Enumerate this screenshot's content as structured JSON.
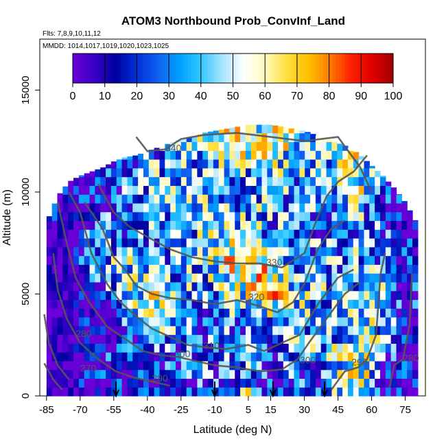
{
  "figure": {
    "title": "ATOM3 Northbound Prob_ConvInf_Land",
    "flights_label": "Flts: 7,8,9,10,11,12",
    "dates_label": "MMDD: 1014,1017,1019,1020,1023,1025"
  },
  "chart_data": {
    "type": "heatmap",
    "title": "ATOM3 Northbound Prob_ConvInf_Land",
    "xlabel": "Latitude (deg N)",
    "ylabel": "Altitude (m)",
    "xlim": [
      -88,
      84
    ],
    "ylim": [
      0,
      17500
    ],
    "x_ticks": [
      -85,
      -70,
      -55,
      -40,
      -25,
      -10,
      5,
      15,
      30,
      45,
      60,
      75
    ],
    "y_ticks": [
      0,
      5000,
      10000,
      15000
    ],
    "x_tick_labels": [
      "-85",
      "-70",
      "-55",
      "-40",
      "-25",
      "-10",
      "5",
      "15",
      "30",
      "45",
      "60",
      "75"
    ],
    "y_tick_labels": [
      "0",
      "5000",
      "10000",
      "15000"
    ],
    "colorbar": {
      "min": 0,
      "max": 100,
      "ticks": [
        0,
        10,
        20,
        30,
        40,
        50,
        60,
        70,
        80,
        90,
        100
      ],
      "tick_labels": [
        "0",
        "10",
        "20",
        "30",
        "40",
        "50",
        "60",
        "70",
        "80",
        "90",
        "100"
      ],
      "colors": [
        "#6a00d8",
        "#3a00c8",
        "#0000a0",
        "#0030d8",
        "#1060f0",
        "#00a0ff",
        "#30c8ff",
        "#a8e4ff",
        "#ffffff",
        "#fffac0",
        "#ffe040",
        "#ffc000",
        "#ff8000",
        "#ff2000",
        "#e00000",
        "#a00000"
      ]
    },
    "coverage": {
      "lat": [
        -85,
        -80,
        -75,
        -70,
        -65,
        -60,
        -55,
        -50,
        -45,
        -40,
        -35,
        -30,
        -25,
        -20,
        -15,
        -10,
        -5,
        0,
        5,
        10,
        15,
        20,
        25,
        30,
        35,
        40,
        45,
        50,
        55,
        60,
        65,
        70,
        75,
        80
      ],
      "max_alt": [
        8500,
        9800,
        10500,
        10800,
        11000,
        11200,
        11500,
        11700,
        11800,
        12000,
        12200,
        12400,
        12600,
        12700,
        12900,
        13000,
        13100,
        13200,
        13300,
        13300,
        13300,
        13200,
        13100,
        13000,
        12800,
        12600,
        12400,
        12200,
        11800,
        11300,
        10800,
        10200,
        9500,
        8500
      ]
    },
    "field": {
      "lat": [
        -85,
        -75,
        -65,
        -55,
        -45,
        -35,
        -25,
        -15,
        -5,
        5,
        15,
        25,
        35,
        45,
        55,
        65,
        75
      ],
      "alt": [
        500,
        2000,
        3500,
        5000,
        6500,
        8000,
        9500,
        11000,
        12500
      ],
      "prob": [
        [
          1,
          2,
          5,
          12,
          10,
          8,
          15,
          30,
          20,
          45,
          12,
          22,
          18,
          50,
          60,
          15,
          5
        ],
        [
          1,
          3,
          6,
          18,
          15,
          20,
          25,
          30,
          30,
          30,
          20,
          40,
          35,
          45,
          55,
          30,
          10
        ],
        [
          2,
          5,
          10,
          25,
          30,
          40,
          45,
          25,
          35,
          30,
          30,
          35,
          40,
          35,
          45,
          40,
          15
        ],
        [
          3,
          8,
          20,
          35,
          50,
          55,
          40,
          35,
          40,
          50,
          70,
          45,
          40,
          35,
          45,
          40,
          15
        ],
        [
          3,
          10,
          25,
          40,
          45,
          40,
          30,
          40,
          60,
          75,
          60,
          40,
          35,
          35,
          40,
          30,
          12
        ],
        [
          2,
          10,
          25,
          30,
          30,
          30,
          35,
          40,
          50,
          40,
          35,
          35,
          30,
          30,
          35,
          25,
          10
        ],
        [
          2,
          8,
          15,
          25,
          30,
          35,
          35,
          40,
          40,
          40,
          35,
          35,
          30,
          35,
          45,
          20,
          8
        ],
        [
          0,
          3,
          10,
          20,
          30,
          40,
          35,
          35,
          35,
          40,
          45,
          40,
          35,
          45,
          55,
          20,
          5
        ],
        [
          0,
          0,
          5,
          10,
          20,
          30,
          40,
          50,
          55,
          60,
          55,
          50,
          45,
          50,
          60,
          30,
          0
        ]
      ]
    },
    "contour_labels": [
      {
        "text": "340",
        "lat": -32,
        "alt": 12000
      },
      {
        "text": "330",
        "lat": 13,
        "alt": 6400
      },
      {
        "text": "320",
        "lat": 5,
        "alt": 4700
      },
      {
        "text": "310",
        "lat": -15,
        "alt": 2300
      },
      {
        "text": "300",
        "lat": -28,
        "alt": 1900
      },
      {
        "text": "300",
        "lat": 28,
        "alt": 1600
      },
      {
        "text": "290",
        "lat": 51,
        "alt": 1500
      },
      {
        "text": "290",
        "lat": -38,
        "alt": 700
      },
      {
        "text": "280",
        "lat": -72,
        "alt": 2900
      },
      {
        "text": "270",
        "lat": -70,
        "alt": 1200
      },
      {
        "text": "280",
        "lat": 74,
        "alt": 1700
      }
    ],
    "contours": [
      {
        "level": 340,
        "points": [
          [
            -45,
            12700
          ],
          [
            -40,
            12000
          ],
          [
            -32,
            12100
          ],
          [
            -25,
            12600
          ],
          [
            -15,
            12800
          ],
          [
            0,
            12900
          ],
          [
            15,
            12700
          ],
          [
            30,
            12500
          ],
          [
            45,
            12700
          ],
          [
            55,
            11200
          ],
          [
            60,
            10000
          ]
        ]
      },
      {
        "level": 330,
        "points": [
          [
            -62,
            10400
          ],
          [
            -55,
            9000
          ],
          [
            -48,
            8300
          ],
          [
            -40,
            7800
          ],
          [
            -30,
            7200
          ],
          [
            -20,
            6800
          ],
          [
            -10,
            6600
          ],
          [
            0,
            6500
          ],
          [
            10,
            6500
          ],
          [
            20,
            6300
          ],
          [
            30,
            7000
          ],
          [
            35,
            8500
          ],
          [
            40,
            9800
          ],
          [
            45,
            10500
          ],
          [
            52,
            11000
          ],
          [
            58,
            11800
          ]
        ]
      },
      {
        "level": 320,
        "points": [
          [
            -68,
            9500
          ],
          [
            -60,
            8200
          ],
          [
            -55,
            6800
          ],
          [
            -50,
            6200
          ],
          [
            -45,
            5400
          ],
          [
            -38,
            5000
          ],
          [
            -30,
            4800
          ],
          [
            -20,
            4700
          ],
          [
            -10,
            4500
          ],
          [
            0,
            4700
          ],
          [
            10,
            4400
          ],
          [
            18,
            4100
          ],
          [
            25,
            4600
          ],
          [
            30,
            5500
          ],
          [
            36,
            7200
          ],
          [
            42,
            8200
          ],
          [
            48,
            8600
          ]
        ]
      },
      {
        "level": 310,
        "points": [
          [
            -75,
            10000
          ],
          [
            -70,
            9000
          ],
          [
            -65,
            7000
          ],
          [
            -58,
            5500
          ],
          [
            -52,
            4600
          ],
          [
            -45,
            3900
          ],
          [
            -38,
            3300
          ],
          [
            -30,
            2900
          ],
          [
            -22,
            2500
          ],
          [
            -15,
            2400
          ],
          [
            -5,
            2300
          ],
          [
            5,
            2500
          ],
          [
            12,
            2200
          ],
          [
            20,
            2600
          ],
          [
            28,
            3000
          ],
          [
            36,
            4500
          ],
          [
            45,
            5800
          ],
          [
            52,
            6200
          ]
        ]
      },
      {
        "level": 300,
        "points": [
          [
            -80,
            9500
          ],
          [
            -76,
            7500
          ],
          [
            -72,
            5800
          ],
          [
            -66,
            4600
          ],
          [
            -58,
            3400
          ],
          [
            -50,
            2800
          ],
          [
            -42,
            2200
          ],
          [
            -34,
            2000
          ],
          [
            -26,
            1900
          ],
          [
            -18,
            1700
          ],
          [
            -10,
            1500
          ],
          [
            0,
            1400
          ],
          [
            10,
            1200
          ],
          [
            20,
            1300
          ],
          [
            27,
            1800
          ],
          [
            32,
            2600
          ],
          [
            40,
            3800
          ],
          [
            48,
            5000
          ],
          [
            55,
            5600
          ]
        ]
      },
      {
        "level": 290,
        "points": [
          [
            -82,
            7000
          ],
          [
            -80,
            5200
          ],
          [
            -76,
            3800
          ],
          [
            -70,
            2600
          ],
          [
            -62,
            1800
          ],
          [
            -54,
            1200
          ],
          [
            -46,
            900
          ],
          [
            -38,
            700
          ],
          [
            -30,
            500
          ]
        ]
      },
      {
        "level": 290,
        "points": [
          [
            42,
            300
          ],
          [
            48,
            1200
          ],
          [
            54,
            1400
          ],
          [
            58,
            1800
          ],
          [
            62,
            3000
          ],
          [
            64,
            6000
          ],
          [
            66,
            7000
          ]
        ]
      },
      {
        "level": 280,
        "points": [
          [
            -86,
            4000
          ],
          [
            -84,
            2600
          ],
          [
            -80,
            1500
          ],
          [
            -75,
            800
          ]
        ]
      },
      {
        "level": 280,
        "points": [
          [
            68,
            400
          ],
          [
            70,
            1500
          ],
          [
            74,
            1800
          ],
          [
            77,
            3500
          ],
          [
            78,
            6000
          ]
        ]
      },
      {
        "level": 270,
        "points": [
          [
            -86,
            1600
          ],
          [
            -82,
            800
          ],
          [
            -78,
            300
          ]
        ]
      }
    ],
    "arrows_lat": [
      -54,
      -10,
      16,
      39
    ]
  }
}
